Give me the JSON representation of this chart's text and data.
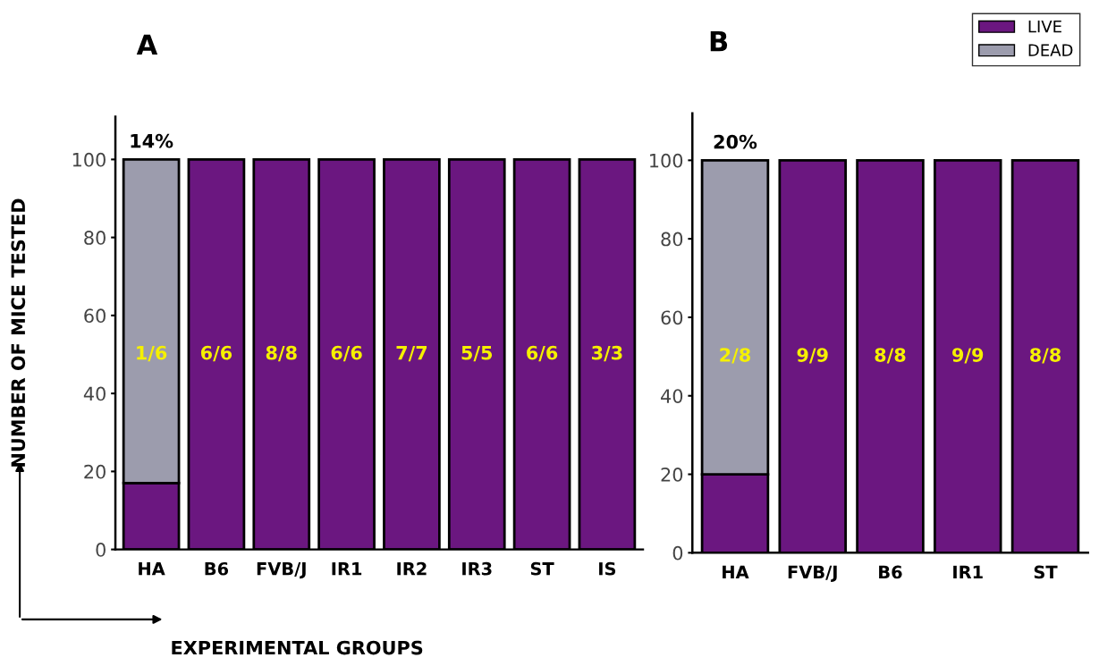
{
  "chart_data": [
    {
      "type": "bar",
      "title": "A",
      "ylabel": "NUMBER OF MICE TESTED",
      "xlabel": "EXPERIMENTAL GROUPS",
      "stacked": true,
      "categories": [
        "HA",
        "B6",
        "FVB/J",
        "IR1",
        "IR2",
        "IR3",
        "ST",
        "IS"
      ],
      "series": [
        {
          "color": "#6b1780",
          "values": [
            17,
            100,
            100,
            100,
            100,
            100,
            100,
            100
          ]
        },
        {
          "color": "#9c9cad",
          "values": [
            83,
            null,
            null,
            null,
            null,
            null,
            null,
            null
          ]
        }
      ],
      "annotations": [
        "14%",
        "1/6",
        "6/6",
        "8/8",
        "6/6",
        "7/7",
        "5/5",
        "6/6",
        "3/3"
      ],
      "ylim": [
        0,
        111
      ],
      "yticks": [
        0,
        20,
        40,
        60,
        80,
        100
      ],
      "grid": false,
      "legend": false
    },
    {
      "type": "bar",
      "title": "B",
      "stacked": true,
      "categories": [
        "HA",
        "FVB/J",
        "B6",
        "IR1",
        "ST"
      ],
      "series": [
        {
          "name": "LIVE",
          "color": "#6b1780",
          "values": [
            20,
            100,
            100,
            100,
            100
          ]
        },
        {
          "name": "DEAD",
          "color": "#9c9cad",
          "values": [
            80,
            null,
            null,
            null,
            null
          ]
        }
      ],
      "annotations": [
        "20%",
        "2/8",
        "9/9",
        "8/8",
        "9/9",
        "8/8"
      ],
      "ylim": [
        0,
        112
      ],
      "yticks": [
        0,
        20,
        40,
        60,
        80,
        100
      ],
      "grid": false,
      "legend": "top right"
    }
  ]
}
